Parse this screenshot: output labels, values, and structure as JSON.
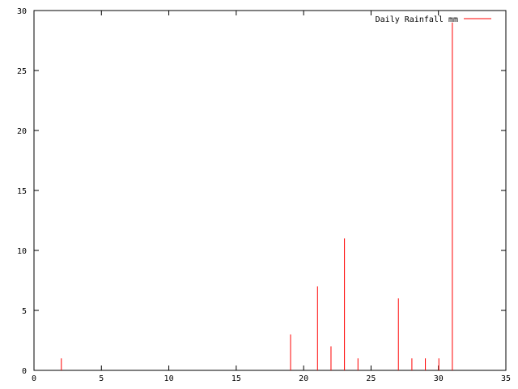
{
  "chart_data": {
    "type": "bar",
    "legend": {
      "label": "Daily Rainfall mm",
      "position": "top-right"
    },
    "series": [
      {
        "name": "Daily Rainfall mm",
        "color": "#ff0000",
        "x": [
          2,
          19,
          21,
          22,
          23,
          24,
          27,
          28,
          29,
          30,
          31
        ],
        "values": [
          1,
          3,
          7,
          2,
          11,
          1,
          6,
          1,
          1,
          1,
          29
        ]
      }
    ],
    "xlim": [
      0,
      35
    ],
    "ylim": [
      0,
      30
    ],
    "xticks": [
      0,
      5,
      10,
      15,
      20,
      25,
      30,
      35
    ],
    "yticks": [
      0,
      5,
      10,
      15,
      20,
      25,
      30
    ],
    "grid": false,
    "title": "",
    "xlabel": "",
    "ylabel": ""
  }
}
